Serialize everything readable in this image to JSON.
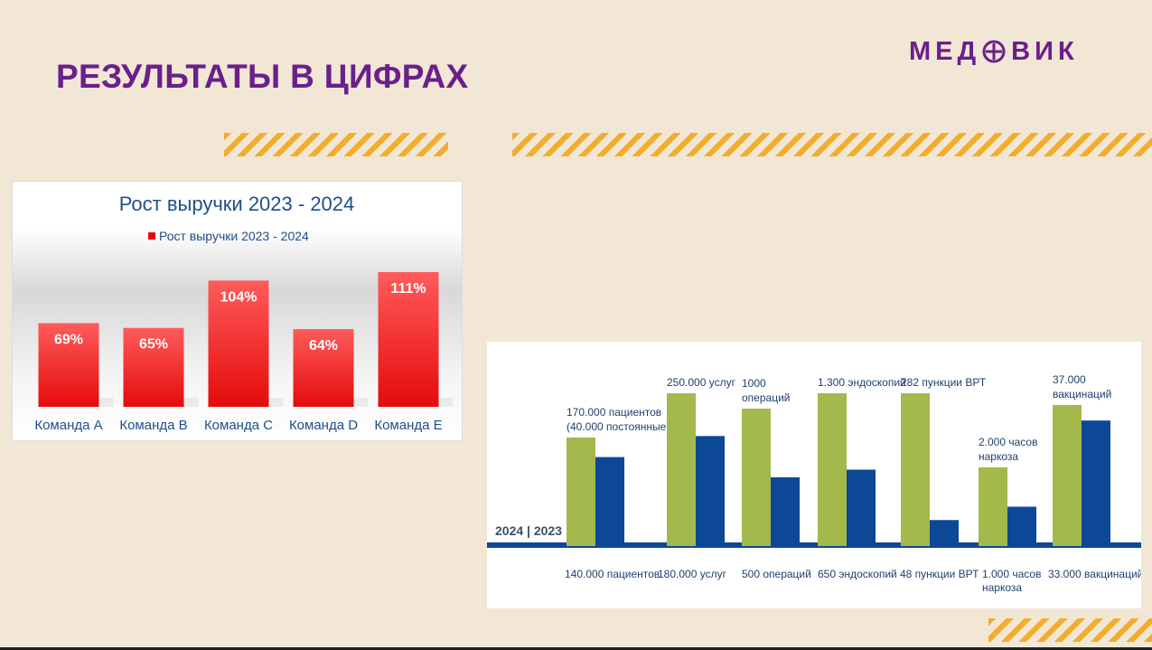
{
  "slide": {
    "title": "РЕЗУЛЬТАТЫ В ЦИФРАХ",
    "logo_left": "МЕД",
    "logo_right": "ВИК"
  },
  "colors": {
    "title": "#6a1f8a",
    "stripe": "#f3ad2c",
    "bar_red_top": "#ff5b5b",
    "bar_red_bottom": "#e50b0b",
    "green": "#a4b94c",
    "blue": "#0d4896",
    "baseline": "#0d4896"
  },
  "chart_data": [
    {
      "type": "bar",
      "title": "Рост выручки 2023 - 2024",
      "legend": "Рост выручки 2023 - 2024",
      "legend_position": "top",
      "categories": [
        "Команда A",
        "Команда B",
        "Команда C",
        "Команда D",
        "Команда E"
      ],
      "values": [
        69,
        65,
        104,
        64,
        111
      ],
      "labels": [
        "69%",
        "65%",
        "104%",
        "64%",
        "111%"
      ],
      "ylim": [
        0,
        111
      ],
      "grid": false
    },
    {
      "type": "bar",
      "baseline_label": "2024 | 2023",
      "categories": [
        "Пациенты",
        "Услуги",
        "Операции",
        "Эндоскопии",
        "Пункции ВРТ",
        "Наркоз",
        "Вакцинации"
      ],
      "series": [
        {
          "values_relative": [
            1.0,
            1.0,
            1.0,
            1.0,
            1.0,
            1.0,
            1.0
          ],
          "labels": [
            "170.000 пациентов|(40.000 постоянные)",
            "250.000 услуг",
            "1000|операций",
            "1.300 эндоскопий",
            "282 пункции ВРТ",
            "2.000 часов|наркоза",
            "37.000|вакцинаций"
          ]
        },
        {
          "values_relative": [
            0.82,
            0.72,
            0.5,
            0.5,
            0.17,
            0.5,
            0.89
          ],
          "labels": [
            "140.000 пациентов",
            "180.000 услуг",
            "500 операций",
            "650 эндоскопий",
            "48 пункции ВРТ",
            "1.000 часов|наркоза",
            "33.000 вакцинаций"
          ]
        }
      ],
      "grid": false
    }
  ]
}
